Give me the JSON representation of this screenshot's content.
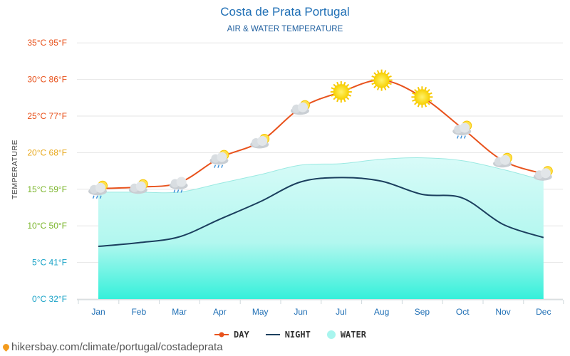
{
  "header": {
    "title": "Costa de Prata Portugal",
    "subtitle": "AIR & WATER TEMPERATURE"
  },
  "chart_data": {
    "type": "line",
    "title": "Costa de Prata Portugal",
    "subtitle": "AIR & WATER TEMPERATURE",
    "xlabel": "",
    "ylabel": "TEMPERATURE",
    "categories": [
      "Jan",
      "Feb",
      "Mar",
      "Apr",
      "May",
      "Jun",
      "Jul",
      "Aug",
      "Sep",
      "Oct",
      "Nov",
      "Dec"
    ],
    "ylim": [
      0,
      35
    ],
    "yticks": [
      {
        "value": 0,
        "label": "0°C 32°F",
        "color": "#1aa3c7"
      },
      {
        "value": 5,
        "label": "5°C 41°F",
        "color": "#1aa3c7"
      },
      {
        "value": 10,
        "label": "10°C 50°F",
        "color": "#7ab52a"
      },
      {
        "value": 15,
        "label": "15°C 59°F",
        "color": "#7ab52a"
      },
      {
        "value": 20,
        "label": "20°C 68°F",
        "color": "#e8a81c"
      },
      {
        "value": 25,
        "label": "25°C 77°F",
        "color": "#e8521c"
      },
      {
        "value": 30,
        "label": "30°C 86°F",
        "color": "#e8521c"
      },
      {
        "value": 35,
        "label": "35°C 95°F",
        "color": "#e8521c"
      }
    ],
    "grid": true,
    "legend_position": "bottom-center",
    "series": [
      {
        "name": "DAY",
        "color": "#e8521c",
        "values": [
          15.1,
          15.3,
          15.9,
          19.3,
          21.5,
          26.1,
          28.3,
          29.9,
          27.6,
          23.3,
          18.9,
          17.1
        ]
      },
      {
        "name": "NIGHT",
        "color": "#1b3f5e",
        "values": [
          7.2,
          7.7,
          8.5,
          10.9,
          13.3,
          16.0,
          16.6,
          16.1,
          14.3,
          13.8,
          10.2,
          8.4
        ]
      },
      {
        "name": "WATER",
        "color": "#a8f5ee",
        "values": [
          14.6,
          14.6,
          14.6,
          15.8,
          17.0,
          18.3,
          18.5,
          19.1,
          19.3,
          18.9,
          17.7,
          16.2
        ]
      }
    ],
    "weather_icons": [
      "cloud-sun-rain",
      "cloud-sun",
      "cloud-rain",
      "cloud-sun-rain",
      "cloud-sun",
      "cloud-sun",
      "sun",
      "sun",
      "sun",
      "cloud-sun-rain",
      "cloud-sun",
      "cloud-sun"
    ]
  },
  "legend": {
    "day": "DAY",
    "night": "NIGHT",
    "water": "WATER"
  },
  "footer": {
    "source": "hikersbay.com/climate/portugal/costadeprata"
  }
}
